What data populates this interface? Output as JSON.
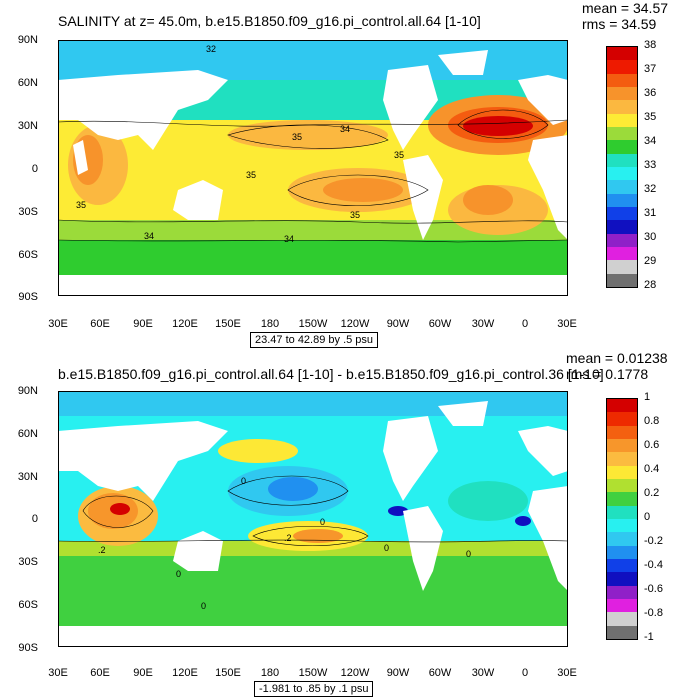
{
  "panel1": {
    "title": "SALINITY at z=  45.0m, b.e15.B1850.f09_g16.pi_control.all.64 [1-10]",
    "mean": "mean = 34.57",
    "rms": "rms = 34.59",
    "range": "23.47 to 42.89 by .5 psu",
    "lat_labels": [
      "90N",
      "60N",
      "30N",
      "0",
      "30S",
      "60S",
      "90S"
    ],
    "lon_labels": [
      "30E",
      "60E",
      "90E",
      "120E",
      "150E",
      "180",
      "150W",
      "120W",
      "90W",
      "60W",
      "30W",
      "0",
      "30E"
    ],
    "colorbar": {
      "labels": [
        "38",
        "37",
        "36",
        "35",
        "34",
        "33",
        "32",
        "31",
        "30",
        "29",
        "28"
      ],
      "colors": [
        "#d40000",
        "#ee1a00",
        "#f45c10",
        "#f7932b",
        "#fbb840",
        "#fdeb35",
        "#9bdb3a",
        "#2fcc2f",
        "#20e0c0",
        "#28f0f0",
        "#30c8f0",
        "#2090f0",
        "#1040e8",
        "#1010c0",
        "#9020c8",
        "#e020e0",
        "#d0d0d0",
        "#707070"
      ]
    },
    "contour_labels": [
      "32",
      "35",
      "35",
      "35",
      "34",
      "34",
      "34",
      "35",
      "35"
    ]
  },
  "panel2": {
    "title": "b.e15.B1850.f09_g16.pi_control.all.64 [1-10] - b.e15.B1850.f09_g16.pi_control.36 [1-10]",
    "mean": "mean = 0.01238",
    "rms": "rms = 0.1778",
    "range": "-1.981 to .85 by .1 psu",
    "lat_labels": [
      "90N",
      "60N",
      "30N",
      "0",
      "30S",
      "60S",
      "90S"
    ],
    "lon_labels": [
      "30E",
      "60E",
      "90E",
      "120E",
      "150E",
      "180",
      "150W",
      "120W",
      "90W",
      "60W",
      "30W",
      "0",
      "30E"
    ],
    "colorbar": {
      "labels": [
        "1",
        "0.8",
        "0.6",
        "0.4",
        "0.2",
        "0",
        "-0.2",
        "-0.4",
        "-0.6",
        "-0.8",
        "-1"
      ],
      "colors": [
        "#d40000",
        "#ee2a00",
        "#f46010",
        "#f7962b",
        "#fbbb40",
        "#fde835",
        "#b0e030",
        "#40d040",
        "#20e0c0",
        "#28f0f0",
        "#30c8f0",
        "#2090f0",
        "#1040e8",
        "#1010c0",
        "#9020c8",
        "#e020e0",
        "#d0d0d0",
        "#707070"
      ]
    },
    "contour_labels": [
      "0",
      "0",
      "0",
      "0",
      "0",
      "0",
      ".2",
      ".2"
    ]
  }
}
